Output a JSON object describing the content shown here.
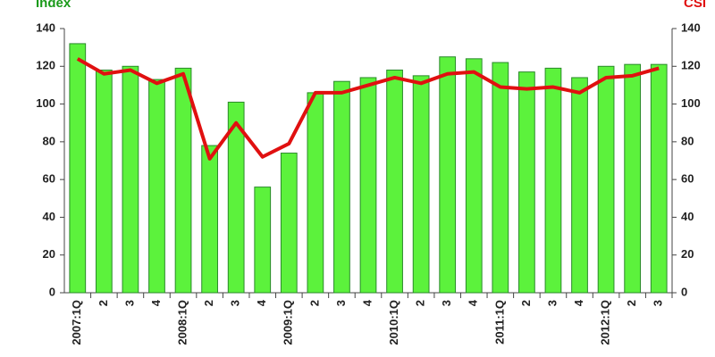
{
  "chart_data": {
    "type": "bar",
    "y_label": "Index",
    "y2_label": "CSI",
    "categories": [
      "2007:1Q",
      "2",
      "3",
      "4",
      "2008:1Q",
      "2",
      "3",
      "4",
      "2009:1Q",
      "2",
      "3",
      "4",
      "2010:1Q",
      "2",
      "3",
      "4",
      "2011:1Q",
      "2",
      "3",
      "4",
      "2012:1Q",
      "2",
      "3"
    ],
    "series": [
      {
        "type": "bar",
        "color": "#5cf23c",
        "values": [
          132,
          118,
          120,
          113,
          119,
          78,
          101,
          56,
          74,
          106,
          112,
          114,
          118,
          115,
          125,
          124,
          122,
          117,
          119,
          114,
          120,
          121,
          121
        ]
      },
      {
        "type": "line",
        "axis": "y2",
        "color": "#e01010",
        "values": [
          124,
          116,
          118,
          111,
          116,
          71,
          90,
          72,
          79,
          106,
          106,
          110,
          114,
          111,
          116,
          117,
          109,
          108,
          109,
          106,
          114,
          115,
          119
        ]
      }
    ],
    "ylim": [
      0,
      140
    ],
    "yticks": [
      0,
      20,
      40,
      60,
      80,
      100,
      120,
      140
    ],
    "y2lim": [
      0,
      140
    ],
    "y2ticks": [
      0,
      20,
      40,
      60,
      80,
      100,
      120,
      140
    ]
  }
}
